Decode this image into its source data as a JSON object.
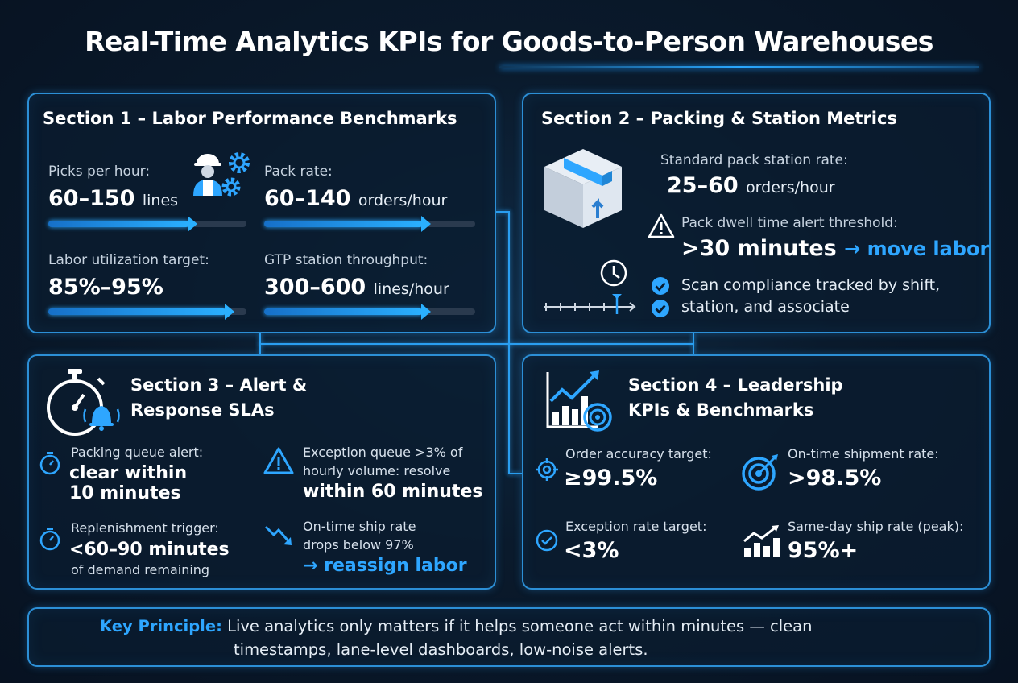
{
  "title": {
    "part1": "Real-Time Analytics KPIs for ",
    "part2": "Goods-to-Person Warehouses"
  },
  "section1": {
    "title": "Section 1 – Labor Performance Benchmarks",
    "metrics": [
      {
        "label": "Picks per hour:",
        "value": "60–150",
        "unit": "lines",
        "fill": 0.71
      },
      {
        "label": "Pack rate:",
        "value": "60–140",
        "unit": "orders/hour",
        "fill": 0.75
      },
      {
        "label": "Labor utilization target:",
        "value": "85%–95%",
        "unit": "",
        "fill": 0.9
      },
      {
        "label": "GTP station throughput:",
        "value": "300–600",
        "unit": "lines/hour",
        "fill": 0.75
      }
    ]
  },
  "section2": {
    "title": "Section 2 – Packing & Station Metrics",
    "rate_label": "Standard pack station rate:",
    "rate_value": "25–60",
    "rate_unit": "orders/hour",
    "dwell_label": "Pack dwell time alert threshold:",
    "dwell_value": ">30 minutes",
    "dwell_action": "→ move labor",
    "compliance_line1": "Scan compliance tracked by shift,",
    "compliance_line2": "station, and associate"
  },
  "section3": {
    "title_line1": "Section 3 – Alert &",
    "title_line2": "Response SLAs",
    "items": [
      {
        "label": "Packing queue alert:",
        "value_line1": "clear within",
        "value_line2": "10 minutes"
      },
      {
        "label_line1": "Exception queue >3% of",
        "label_line2": "hourly volume: resolve",
        "value": "within 60 minutes"
      },
      {
        "label": "Replenishment trigger:",
        "value": "<60–90 minutes",
        "sub": "of demand remaining"
      },
      {
        "label_line1": "On-time ship rate",
        "label_line2": "drops below 97%",
        "value": "→ reassign labor"
      }
    ]
  },
  "section4": {
    "title_line1": "Section 4 – Leadership",
    "title_line2": "KPIs & Benchmarks",
    "items": [
      {
        "label": "Order accuracy target:",
        "value": "≥99.5%"
      },
      {
        "label": "On-time shipment rate:",
        "value": ">98.5%"
      },
      {
        "label": "Exception rate target:",
        "value": "<3%"
      },
      {
        "label": "Same-day ship rate (peak):",
        "value": "95%+"
      }
    ]
  },
  "key_principle": {
    "label": "Key Principle:",
    "line1": "Live analytics only matters if it helps someone act within minutes — clean",
    "line2": "timestamps, lane-level dashboards, low-noise alerts."
  },
  "colors": {
    "accent": "#2ea6ff",
    "border": "#2c8fd6",
    "background": "#0a1a2c"
  },
  "icons": [
    "worker-icon",
    "gear-icon",
    "package-icon",
    "warning-icon",
    "clock-icon",
    "check-icon",
    "stopwatch-icon",
    "bell-icon",
    "trend-chart-icon",
    "target-icon",
    "trend-down-icon"
  ]
}
